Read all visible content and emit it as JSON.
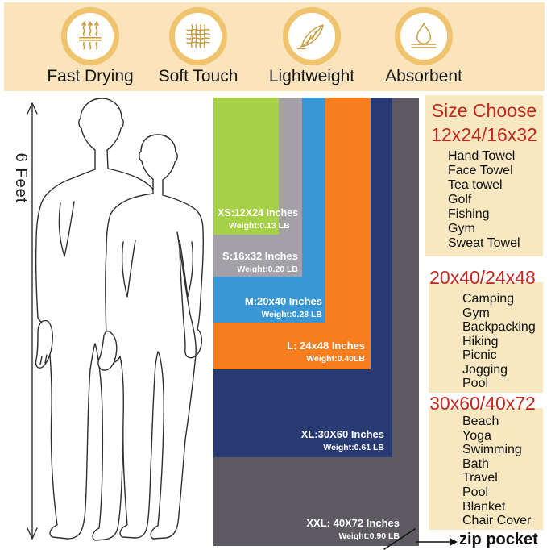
{
  "banner": {
    "features": [
      {
        "label": "Fast Drying",
        "icon": "steam-icon"
      },
      {
        "label": "Soft Touch",
        "icon": "mesh-icon"
      },
      {
        "label": "Lightweight",
        "icon": "feather-icon"
      },
      {
        "label": "Absorbent",
        "icon": "droplet-icon"
      }
    ]
  },
  "figure": {
    "height_label": "6 Feet"
  },
  "towels": [
    {
      "size": "XS",
      "size_label": "XS:12X24 Inches",
      "weight_label": "Weight:0.13 LB",
      "color": "#a6d147"
    },
    {
      "size": "S",
      "size_label": "S:16x32 Inches",
      "weight_label": "Weight:0.20 LB",
      "color": "#a3a1a7"
    },
    {
      "size": "M",
      "size_label": "M:20x40 Inches",
      "weight_label": "Weight:0.28 LB",
      "color": "#3997d6"
    },
    {
      "size": "L",
      "size_label": "L: 24x48 Inches",
      "weight_label": "Weight:0.40LB",
      "color": "#f87e1d"
    },
    {
      "size": "XL",
      "size_label": "XL:30X60 Inches",
      "weight_label": "Weight:0.61 LB",
      "color": "#273a72"
    },
    {
      "size": "XXL",
      "size_label": "XXL: 40X72 Inches",
      "weight_label": "Weight:0.90 LB",
      "color": "#5e5a62"
    }
  ],
  "size_guide": {
    "title": "Size Choose",
    "sections": [
      {
        "heading": "12x24/16x32",
        "items": [
          "Hand Towel",
          "Face Towel",
          "Tea towel",
          "Golf",
          "Fishing",
          "Gym",
          "Sweat Towel"
        ]
      },
      {
        "heading": "20x40/24x48",
        "items": [
          "Camping",
          "Gym",
          "Backpacking",
          "Hiking",
          "Picnic",
          "Jogging",
          "Pool"
        ]
      },
      {
        "heading": "30x60/40x72",
        "items": [
          "Beach",
          "Yoga",
          "Swimming",
          "Bath",
          "Travel",
          "Pool",
          "Blanket",
          "Chair Cover"
        ]
      }
    ]
  },
  "zip_note": {
    "label": "zip pocket"
  },
  "colors": {
    "banner_bg": "#fbe3bc",
    "panel_bg": "#f8e8c2",
    "heading_red": "#c3271d",
    "icon_gold": "#c89b3c",
    "ring_gold": "#f0c46e"
  }
}
